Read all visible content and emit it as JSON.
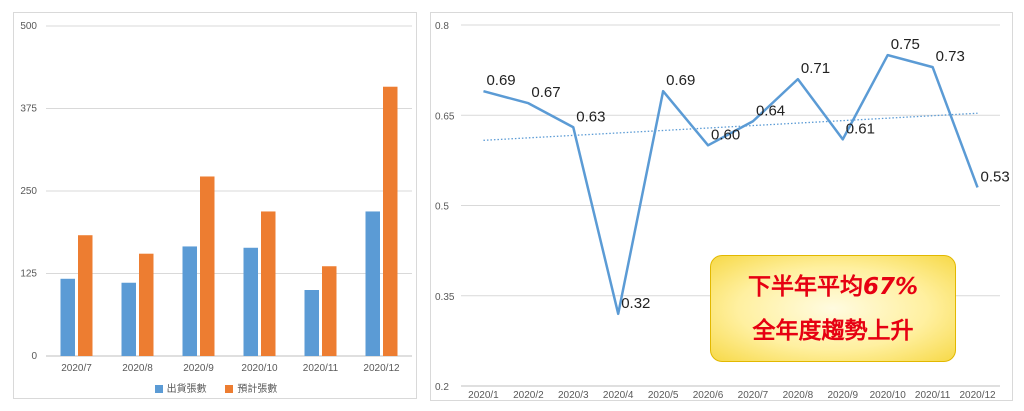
{
  "chart_data": [
    {
      "type": "bar",
      "categories": [
        "2020/7",
        "2020/8",
        "2020/9",
        "2020/10",
        "2020/11",
        "2020/12"
      ],
      "series": [
        {
          "name": "出貨張數",
          "values": [
            117,
            111,
            166,
            164,
            100,
            219
          ],
          "color": "#5b9bd5"
        },
        {
          "name": "預計張數",
          "values": [
            183,
            155,
            272,
            219,
            136,
            408
          ],
          "color": "#ed7d31"
        }
      ],
      "yticks": [
        "0",
        "125",
        "250",
        "375",
        "500"
      ],
      "ylim": [
        0,
        500
      ],
      "grid": true,
      "legend": "bottom"
    },
    {
      "type": "line",
      "categories": [
        "2020/1",
        "2020/2",
        "2020/3",
        "2020/4",
        "2020/5",
        "2020/6",
        "2020/7",
        "2020/8",
        "2020/9",
        "2020/10",
        "2020/11",
        "2020/12"
      ],
      "values": [
        0.69,
        0.67,
        0.63,
        0.32,
        0.69,
        0.6,
        0.64,
        0.71,
        0.61,
        0.75,
        0.73,
        0.53
      ],
      "labels": [
        "0.69",
        "0.67",
        "0.63",
        "0.32",
        "0.69",
        "0.60",
        "0.64",
        "0.71",
        "0.61",
        "0.75",
        "0.73",
        "0.53"
      ],
      "yticks": [
        "0.2",
        "0.35",
        "0.5",
        "0.65",
        "0.8"
      ],
      "ylim": [
        0.2,
        0.8
      ],
      "grid": true,
      "line_color": "#5b9bd5",
      "trendline": "linear, dotted"
    }
  ],
  "callout": {
    "line1_text": "下半年平均",
    "line1_value": "67%",
    "line2": "全年度趨勢上升"
  }
}
